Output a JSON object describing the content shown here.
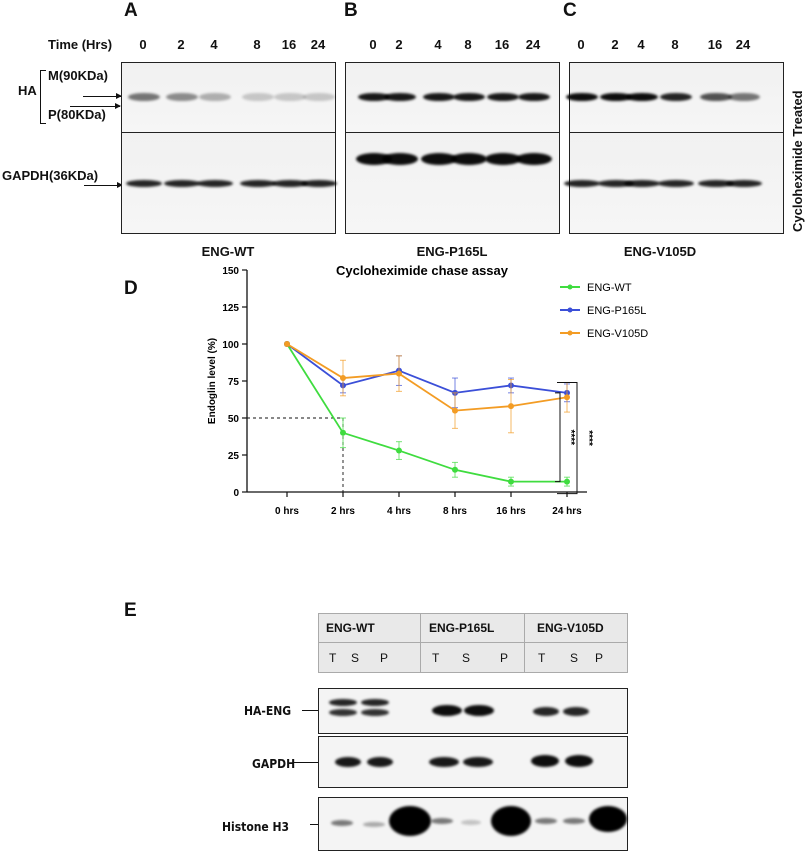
{
  "panels": {
    "a": "A",
    "b": "B",
    "c": "C",
    "d": "D",
    "e": "E"
  },
  "blots_top": {
    "time_label": "Time (Hrs)",
    "lanes_a": [
      "0",
      "2",
      "4",
      "8",
      "16",
      "24"
    ],
    "lanes_b": [
      "0",
      "2",
      "4",
      "8",
      "16",
      "24"
    ],
    "lanes_c": [
      "0",
      "2",
      "4",
      "8",
      "16",
      "24"
    ],
    "ha_label": "HA",
    "m_label": "M(90KDa)",
    "p_label": "P(80KDa)",
    "gapdh_label": "GAPDH(36KDa)",
    "caption_a": "ENG-WT",
    "caption_b": "ENG-P165L",
    "caption_c": "ENG-V105D",
    "side_label": "Cycloheximide Treated",
    "ha_intensity": {
      "ENG-WT": [
        0.55,
        0.45,
        0.3,
        0.2,
        0.2,
        0.2
      ],
      "ENG-P165L": [
        0.95,
        0.95,
        0.95,
        0.95,
        0.95,
        0.95
      ],
      "ENG-V105D": [
        1.0,
        1.0,
        1.0,
        0.9,
        0.7,
        0.55
      ]
    }
  },
  "chart_data": {
    "type": "line",
    "title": "Cycloheximide chase assay",
    "xlabel": "",
    "ylabel": "Endoglin level (%)",
    "categories": [
      "0 hrs",
      "2 hrs",
      "4 hrs",
      "8 hrs",
      "16 hrs",
      "24 hrs"
    ],
    "ylim": [
      0,
      150
    ],
    "yticks": [
      0,
      25,
      50,
      75,
      100,
      125,
      150
    ],
    "series": [
      {
        "name": "ENG-WT",
        "color": "#3fdc3f",
        "values": [
          100,
          40,
          28,
          15,
          7,
          7
        ],
        "errors": [
          0,
          10,
          6,
          5,
          3,
          3
        ]
      },
      {
        "name": "ENG-P165L",
        "color": "#3b4fd8",
        "values": [
          100,
          72,
          82,
          67,
          72,
          67
        ],
        "errors": [
          0,
          5,
          10,
          10,
          5,
          6
        ]
      },
      {
        "name": "ENG-V105D",
        "color": "#f39c24",
        "values": [
          100,
          77,
          80,
          55,
          58,
          64
        ],
        "errors": [
          0,
          12,
          12,
          12,
          18,
          10
        ]
      }
    ],
    "legend_position": "top-right",
    "significance": [
      "****",
      "****"
    ]
  },
  "panel_e": {
    "groups": [
      "ENG-WT",
      "ENG-P165L",
      "ENG-V105D"
    ],
    "lanes": [
      "T",
      "S",
      "P",
      "T",
      "S",
      "P",
      "T",
      "S",
      "P"
    ],
    "rows": [
      "HA-ENG",
      "GAPDH",
      "Histone H3"
    ]
  }
}
